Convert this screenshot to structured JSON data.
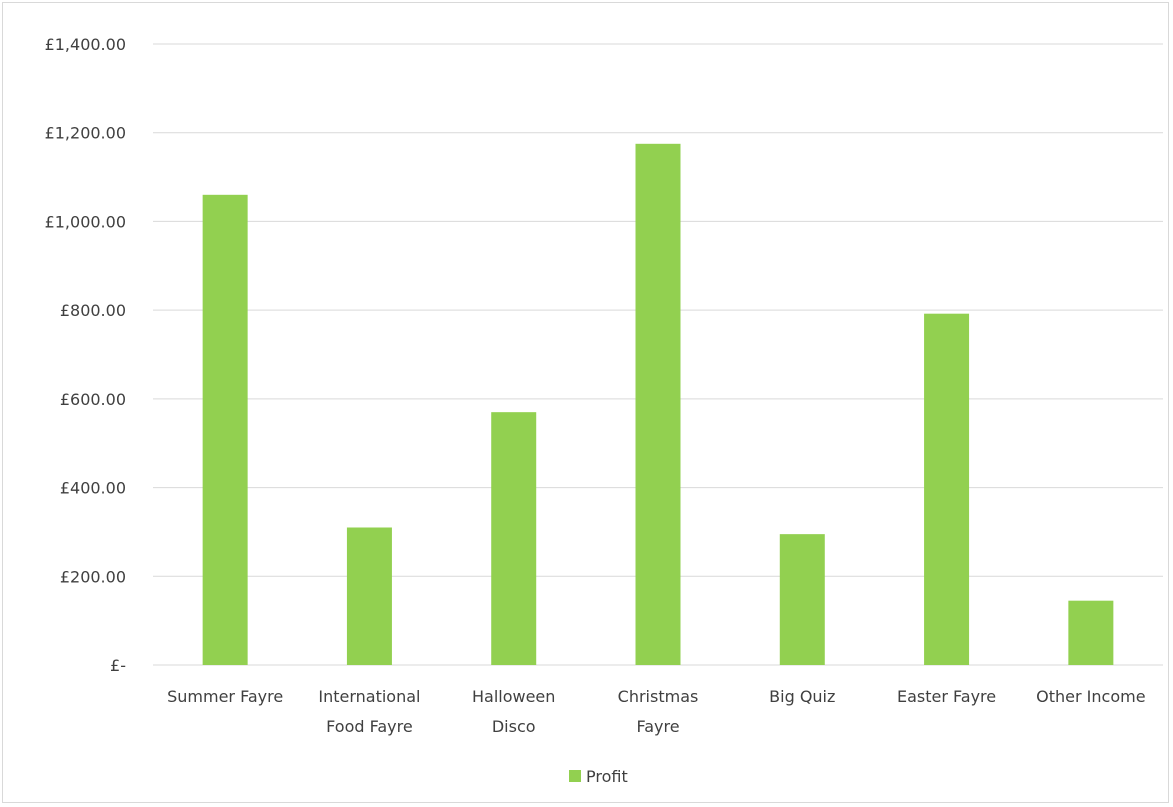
{
  "chart_data": {
    "type": "bar",
    "categories": [
      [
        "Summer Fayre"
      ],
      [
        "International",
        "Food Fayre"
      ],
      [
        "Halloween",
        "Disco"
      ],
      [
        "Christmas",
        "Fayre"
      ],
      [
        "Big Quiz"
      ],
      [
        "Easter Fayre"
      ],
      [
        "Other Income"
      ]
    ],
    "series": [
      {
        "name": "Profit",
        "color": "#92d050",
        "values": [
          1060,
          310,
          570,
          1175,
          295,
          792,
          145
        ]
      }
    ],
    "ylim": [
      0,
      1400
    ],
    "y_ticks": [
      0,
      200,
      400,
      600,
      800,
      1000,
      1200,
      1400
    ],
    "y_tick_labels": [
      "£-",
      "£200.00",
      "£400.00",
      "£600.00",
      "£800.00",
      "£1,000.00",
      "£1,200.00",
      "£1,400.00"
    ],
    "grid": true,
    "legend_position": "bottom",
    "title": "",
    "xlabel": "",
    "ylabel": ""
  }
}
